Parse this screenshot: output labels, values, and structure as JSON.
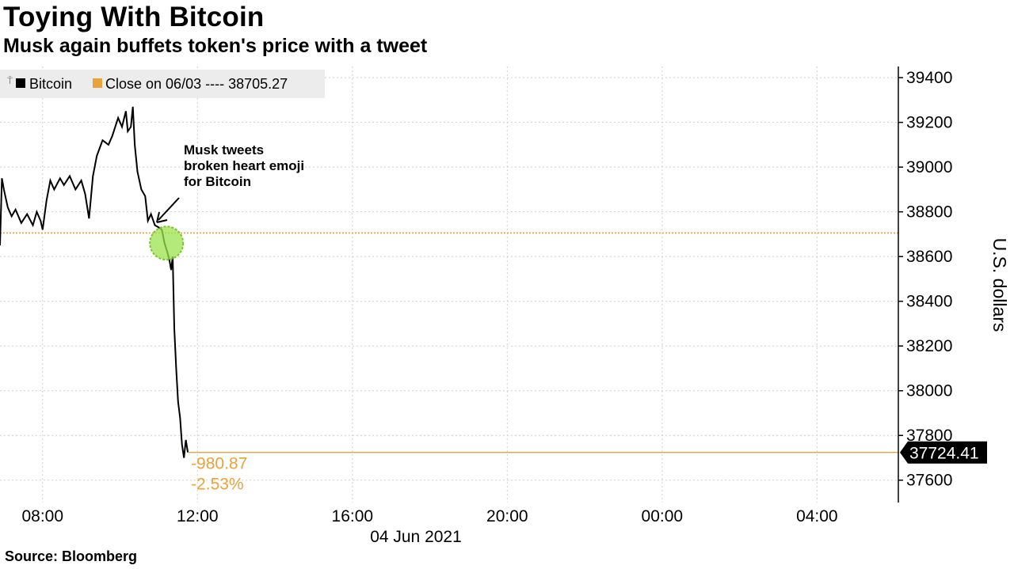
{
  "chart_data": {
    "type": "line",
    "title": "Toying With Bitcoin",
    "subtitle": "Musk again buffets token's price with a tweet",
    "ylabel": "U.S. dollars",
    "xlabel": "",
    "date_label": "04 Jun 2021",
    "source": "Source: Bloomberg",
    "x_ticks": [
      "08:00",
      "12:00",
      "16:00",
      "20:00",
      "00:00",
      "04:00"
    ],
    "y_ticks": [
      37600,
      37800,
      38000,
      38200,
      38400,
      38600,
      38800,
      39000,
      39200,
      39400
    ],
    "ylim": [
      37500,
      39450
    ],
    "xlim_hours": [
      6.9,
      30.1
    ],
    "grid": true,
    "legend_position": "top-left",
    "series": [
      {
        "name": "Bitcoin",
        "color": "#000000",
        "points": [
          [
            6.9,
            38650
          ],
          [
            6.95,
            38950
          ],
          [
            7.0,
            38900
          ],
          [
            7.1,
            38820
          ],
          [
            7.2,
            38780
          ],
          [
            7.3,
            38810
          ],
          [
            7.45,
            38750
          ],
          [
            7.6,
            38790
          ],
          [
            7.75,
            38740
          ],
          [
            7.85,
            38800
          ],
          [
            7.95,
            38760
          ],
          [
            8.0,
            38720
          ],
          [
            8.1,
            38850
          ],
          [
            8.2,
            38940
          ],
          [
            8.3,
            38900
          ],
          [
            8.45,
            38950
          ],
          [
            8.55,
            38920
          ],
          [
            8.7,
            38960
          ],
          [
            8.85,
            38900
          ],
          [
            9.0,
            38940
          ],
          [
            9.1,
            38880
          ],
          [
            9.2,
            38770
          ],
          [
            9.3,
            38960
          ],
          [
            9.4,
            39050
          ],
          [
            9.55,
            39120
          ],
          [
            9.7,
            39100
          ],
          [
            9.8,
            39140
          ],
          [
            9.95,
            39220
          ],
          [
            10.05,
            39180
          ],
          [
            10.15,
            39250
          ],
          [
            10.2,
            39160
          ],
          [
            10.28,
            39180
          ],
          [
            10.33,
            39270
          ],
          [
            10.38,
            39100
          ],
          [
            10.45,
            38980
          ],
          [
            10.55,
            38900
          ],
          [
            10.65,
            38870
          ],
          [
            10.72,
            38760
          ],
          [
            10.8,
            38790
          ],
          [
            10.9,
            38740
          ],
          [
            11.0,
            38730
          ],
          [
            11.08,
            38720
          ],
          [
            11.15,
            38660
          ],
          [
            11.22,
            38620
          ],
          [
            11.28,
            38580
          ],
          [
            11.32,
            38540
          ],
          [
            11.36,
            38600
          ],
          [
            11.4,
            38280
          ],
          [
            11.45,
            38100
          ],
          [
            11.5,
            37950
          ],
          [
            11.55,
            37880
          ],
          [
            11.6,
            37760
          ],
          [
            11.65,
            37700
          ],
          [
            11.7,
            37780
          ],
          [
            11.75,
            37724
          ]
        ]
      },
      {
        "name": "Close on 06/03 ---- 38705.27",
        "color": "#e8a33c",
        "value": 38705.27
      }
    ],
    "last_value": "37724.41",
    "change_abs": "-980.87",
    "change_pct": "-2.53%",
    "annotation": {
      "lines": [
        "Musk tweets",
        "broken heart emoji",
        "for Bitcoin"
      ],
      "highlight_hour": 11.2,
      "highlight_value": 38660
    }
  }
}
